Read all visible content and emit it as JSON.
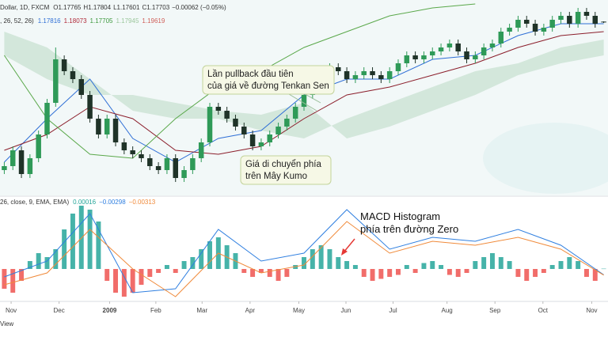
{
  "header": {
    "symbol": "Dollar, 1D, FXCM",
    "ohlc": [
      "O1.17765",
      "H1.17804",
      "L1.17601",
      "C1.17703",
      "−0.00062 (−0.05%)"
    ],
    "ichimoku": ", 26, 52, 26)",
    "ichimoku_values": [
      "1.17816",
      "1.18073",
      "1.17705",
      "1.17945",
      "1.19619"
    ],
    "macd": "26, close, 9, EMA, EMA)",
    "macd_values": [
      "0.00016",
      "−0.00298",
      "−0.00313"
    ]
  },
  "chart_data": [
    {
      "type": "candlestick",
      "open": [
        0.99,
        0.995,
        1.015,
        0.985,
        1.005,
        1.035,
        1.075,
        1.13,
        1.115,
        1.105,
        1.085,
        1.055,
        1.035,
        1.055,
        1.025,
        1.015,
        1.01,
        1.005,
        0.995,
        0.99,
        1.005,
        0.98,
        0.99,
        1.005,
        1.025,
        1.07,
        1.065,
        1.055,
        1.045,
        1.035,
        1.02,
        1.025,
        1.035,
        1.045,
        1.055,
        1.07,
        1.085,
        1.105,
        1.11,
        1.12,
        1.115,
        1.105,
        1.11,
        1.115,
        1.11,
        1.105,
        1.115,
        1.125,
        1.135,
        1.13,
        1.135,
        1.14,
        1.145,
        1.15,
        1.14,
        1.13,
        1.135,
        1.145,
        1.15,
        1.165,
        1.17,
        1.18,
        1.175,
        1.165,
        1.17,
        1.18,
        1.185,
        1.175,
        1.19,
        1.185,
        1.17765
      ],
      "high": [
        1.0,
        1.02,
        1.02,
        1.01,
        1.04,
        1.08,
        1.145,
        1.135,
        1.12,
        1.11,
        1.09,
        1.06,
        1.06,
        1.06,
        1.03,
        1.02,
        1.015,
        1.01,
        1.0,
        1.01,
        1.01,
        0.995,
        1.01,
        1.03,
        1.075,
        1.075,
        1.07,
        1.06,
        1.05,
        1.04,
        1.03,
        1.04,
        1.05,
        1.06,
        1.075,
        1.09,
        1.11,
        1.115,
        1.125,
        1.125,
        1.12,
        1.115,
        1.12,
        1.12,
        1.115,
        1.12,
        1.13,
        1.14,
        1.14,
        1.14,
        1.145,
        1.15,
        1.155,
        1.155,
        1.145,
        1.14,
        1.15,
        1.155,
        1.17,
        1.175,
        1.185,
        1.185,
        1.18,
        1.175,
        1.185,
        1.19,
        1.19,
        1.195,
        1.195,
        1.19,
        1.17804
      ],
      "low": [
        0.985,
        0.99,
        0.98,
        0.98,
        1.0,
        1.03,
        1.07,
        1.11,
        1.1,
        1.08,
        1.05,
        1.03,
        1.03,
        1.02,
        1.01,
        1.005,
        1.0,
        0.99,
        0.985,
        0.985,
        0.975,
        0.975,
        0.985,
        1.0,
        1.02,
        1.06,
        1.05,
        1.04,
        1.03,
        1.015,
        1.015,
        1.02,
        1.03,
        1.04,
        1.05,
        1.065,
        1.08,
        1.1,
        1.105,
        1.11,
        1.1,
        1.1,
        1.105,
        1.105,
        1.1,
        1.1,
        1.11,
        1.12,
        1.125,
        1.125,
        1.13,
        1.135,
        1.14,
        1.135,
        1.125,
        1.125,
        1.13,
        1.14,
        1.145,
        1.16,
        1.165,
        1.17,
        1.16,
        1.16,
        1.165,
        1.175,
        1.17,
        1.17,
        1.18,
        1.17,
        1.17601
      ],
      "close": [
        0.995,
        1.015,
        0.985,
        1.005,
        1.035,
        1.075,
        1.13,
        1.115,
        1.105,
        1.085,
        1.055,
        1.035,
        1.055,
        1.025,
        1.015,
        1.01,
        1.005,
        0.995,
        0.99,
        1.005,
        0.98,
        0.99,
        1.005,
        1.025,
        1.07,
        1.065,
        1.055,
        1.045,
        1.035,
        1.02,
        1.025,
        1.035,
        1.045,
        1.055,
        1.07,
        1.085,
        1.105,
        1.11,
        1.12,
        1.115,
        1.105,
        1.11,
        1.115,
        1.11,
        1.105,
        1.115,
        1.125,
        1.135,
        1.13,
        1.135,
        1.14,
        1.145,
        1.15,
        1.14,
        1.13,
        1.135,
        1.145,
        1.15,
        1.165,
        1.17,
        1.18,
        1.175,
        1.165,
        1.17,
        1.18,
        1.185,
        1.175,
        1.19,
        1.185,
        1.175,
        1.17703
      ],
      "up_color": "#2f9a58",
      "down_color": "#1f3328",
      "xlim": [
        -0.5,
        70.5
      ],
      "ylim": [
        0.96,
        1.2
      ],
      "cloud": {
        "x": [
          0,
          5,
          10,
          15,
          20,
          25,
          30,
          35,
          40,
          45,
          50,
          55,
          60,
          65,
          70
        ],
        "span_a": [
          1.165,
          1.145,
          1.105,
          1.065,
          1.055,
          1.055,
          1.04,
          1.03,
          1.055,
          1.075,
          1.095,
          1.115,
          1.125,
          1.145,
          1.155
        ],
        "span_b": [
          1.135,
          1.105,
          1.085,
          1.085,
          1.075,
          1.065,
          1.06,
          1.075,
          1.03,
          1.045,
          1.065,
          1.085,
          1.11,
          1.125,
          1.135
        ],
        "color": "#b9d9c2"
      },
      "series": [
        {
          "color": "#2f6fd6",
          "x": [
            0,
            5,
            10,
            15,
            20,
            25,
            30,
            35,
            40,
            45,
            50,
            55,
            60,
            65,
            70
          ],
          "values": [
            1.0,
            1.055,
            1.105,
            1.03,
            1.0,
            1.03,
            1.04,
            1.085,
            1.105,
            1.105,
            1.13,
            1.135,
            1.16,
            1.175,
            1.175
          ]
        },
        {
          "color": "#8b1e2b",
          "x": [
            0,
            5,
            10,
            15,
            20,
            25,
            30,
            35,
            40,
            45,
            50,
            55,
            60,
            65,
            70
          ],
          "values": [
            1.015,
            1.035,
            1.07,
            1.055,
            1.015,
            1.01,
            1.02,
            1.055,
            1.085,
            1.095,
            1.11,
            1.125,
            1.145,
            1.16,
            1.165
          ]
        },
        {
          "color": "#5aa84a",
          "x": [
            0,
            5,
            10,
            15,
            20,
            25,
            30,
            35,
            40,
            45,
            50,
            55
          ],
          "values": [
            1.135,
            1.055,
            1.01,
            1.005,
            1.055,
            1.095,
            1.115,
            1.145,
            1.165,
            1.185,
            1.195,
            1.2
          ]
        }
      ],
      "annotations": [
        {
          "lines": [
            "Lần pullback đầu tiên",
            "của giá về đường Tenkan Sen"
          ]
        },
        {
          "lines": [
            "Giá di chuyển phía",
            "trên Mây Kumo"
          ]
        }
      ]
    },
    {
      "type": "macd",
      "histogram": [
        -0.01,
        -0.012,
        -0.006,
        0.004,
        0.008,
        0.006,
        0.01,
        0.02,
        0.028,
        0.032,
        0.03,
        0.024,
        -0.006,
        -0.012,
        -0.014,
        -0.012,
        -0.008,
        -0.004,
        -0.002,
        0.002,
        -0.002,
        0.004,
        0.006,
        0.01,
        0.014,
        0.016,
        0.012,
        0.008,
        -0.002,
        -0.004,
        -0.002,
        -0.004,
        -0.006,
        -0.004,
        0.002,
        0.006,
        0.01,
        0.012,
        0.01,
        0.006,
        0.004,
        0.002,
        -0.004,
        -0.006,
        -0.005,
        -0.004,
        -0.003,
        0.002,
        -0.002,
        0.003,
        0.004,
        0.002,
        -0.003,
        -0.004,
        -0.002,
        0.004,
        0.006,
        0.008,
        0.006,
        0.004,
        -0.004,
        -0.006,
        -0.004,
        -0.002,
        0.002,
        0.004,
        0.006,
        0.004,
        -0.004,
        -0.006,
        0.00016
      ],
      "up_color": "#26a69a",
      "down_color": "#ef5350",
      "series": [
        {
          "color": "#2f7fe0",
          "x": [
            0,
            5,
            10,
            15,
            20,
            25,
            30,
            35,
            40,
            45,
            50,
            55,
            60,
            65,
            70
          ],
          "values": [
            -0.004,
            0.004,
            0.028,
            -0.012,
            -0.01,
            0.02,
            0.004,
            0.008,
            0.03,
            0.01,
            0.016,
            0.014,
            0.02,
            0.012,
            -0.00298
          ]
        },
        {
          "color": "#f08a3a",
          "x": [
            0,
            5,
            10,
            15,
            20,
            25,
            30,
            35,
            40,
            45,
            50,
            55,
            60,
            65,
            70
          ],
          "values": [
            -0.008,
            -0.002,
            0.02,
            0,
            -0.014,
            0.008,
            -0.002,
            0.002,
            0.024,
            0.008,
            0.014,
            0.012,
            0.016,
            0.01,
            -0.00313
          ]
        }
      ],
      "xlim": [
        -0.5,
        70.5
      ],
      "ylim": [
        -0.014,
        0.036
      ],
      "xticks": [
        {
          "value": 0.8,
          "label": "Nov"
        },
        {
          "value": 6.4,
          "label": "Dec"
        },
        {
          "value": 12.3,
          "label": "2009"
        },
        {
          "value": 17.7,
          "label": "Feb"
        },
        {
          "value": 23.1,
          "label": "Mar"
        },
        {
          "value": 28.7,
          "label": "Apr"
        },
        {
          "value": 34.4,
          "label": "May"
        },
        {
          "value": 39.9,
          "label": "Jun"
        },
        {
          "value": 45.4,
          "label": "Jul"
        },
        {
          "value": 51.7,
          "label": "Aug"
        },
        {
          "value": 57.3,
          "label": "Sep"
        },
        {
          "value": 62.9,
          "label": "Oct"
        },
        {
          "value": 68.6,
          "label": "Nov"
        }
      ],
      "annotation": [
        "MACD Histogram",
        "phía trên đường Zero"
      ]
    }
  ],
  "footer": "View"
}
